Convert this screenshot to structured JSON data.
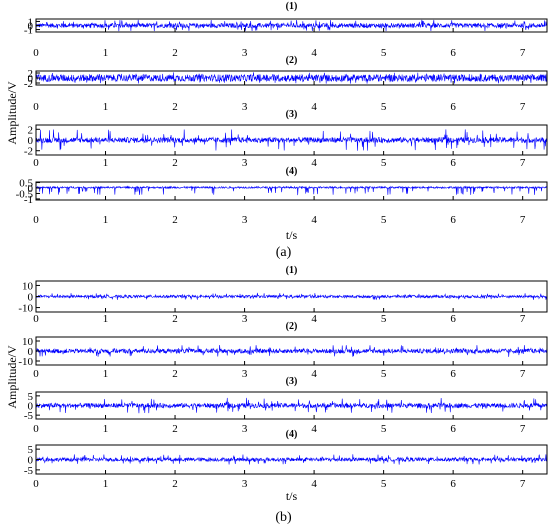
{
  "chart_data": [
    {
      "type": "line",
      "panel_label": "(a)",
      "ylabel": "Amplitude/V",
      "xlabel": "t/s",
      "xlim": [
        0,
        7.35
      ],
      "xticks": [
        "0",
        "1",
        "2",
        "3",
        "4",
        "5",
        "6",
        "7"
      ],
      "grid": false,
      "line_color": "#0000ff",
      "subplots": [
        {
          "title": "(1)",
          "ylim": [
            -1.6,
            1.6
          ],
          "yticks": [
            {
              "v": 1,
              "t": "1"
            },
            {
              "v": 0,
              "t": "0"
            },
            {
              "v": -1,
              "t": "-1"
            }
          ],
          "noise_amplitude": 0.55,
          "spike_amplitude": 1.4,
          "bias": 0
        },
        {
          "title": "(2)",
          "ylim": [
            -2.8,
            2.8
          ],
          "yticks": [
            {
              "v": 2,
              "t": "2"
            },
            {
              "v": 0,
              "t": "0"
            },
            {
              "v": -2,
              "t": "-2"
            }
          ],
          "noise_amplitude": 1.4,
          "spike_amplitude": 2.3,
          "bias": 0
        },
        {
          "title": "(3)",
          "ylim": [
            -2.8,
            2.8
          ],
          "yticks": [
            {
              "v": 2,
              "t": "2"
            },
            {
              "v": 0,
              "t": "0"
            },
            {
              "v": -2,
              "t": "-2"
            }
          ],
          "noise_amplitude": 0.5,
          "spike_amplitude": 2.0,
          "bias": 0
        },
        {
          "title": "(4)",
          "ylim": [
            -1.1,
            0.55
          ],
          "yticks": [
            {
              "v": 0.5,
              "t": "0.5"
            },
            {
              "v": 0,
              "t": "0"
            },
            {
              "v": -0.5,
              "t": "-0.5"
            },
            {
              "v": -1,
              "t": "-1"
            }
          ],
          "noise_amplitude": 0.08,
          "spike_amplitude": 0.7,
          "bias": 0.05,
          "negative_spikes": true
        }
      ]
    },
    {
      "type": "line",
      "panel_label": "(b)",
      "ylabel": "Amplitude/V",
      "xlabel": "t/s",
      "xlim": [
        0,
        7.35
      ],
      "xticks": [
        "0",
        "1",
        "2",
        "3",
        "4",
        "5",
        "6",
        "7"
      ],
      "grid": false,
      "line_color": "#0000ff",
      "subplots": [
        {
          "title": "(1)",
          "ylim": [
            -14,
            14
          ],
          "yticks": [
            {
              "v": 10,
              "t": "10"
            },
            {
              "v": 0,
              "t": "0"
            },
            {
              "v": -10,
              "t": "-10"
            }
          ],
          "noise_amplitude": 1.2,
          "spike_amplitude": 3,
          "bias": 0
        },
        {
          "title": "(2)",
          "ylim": [
            -14,
            14
          ],
          "yticks": [
            {
              "v": 10,
              "t": "10"
            },
            {
              "v": 0,
              "t": "0"
            },
            {
              "v": -10,
              "t": "-10"
            }
          ],
          "noise_amplitude": 2.2,
          "spike_amplitude": 6,
          "bias": 0
        },
        {
          "title": "(3)",
          "ylim": [
            -7,
            7
          ],
          "yticks": [
            {
              "v": 5,
              "t": "5"
            },
            {
              "v": 0,
              "t": "0"
            },
            {
              "v": -5,
              "t": "-5"
            }
          ],
          "noise_amplitude": 1.2,
          "spike_amplitude": 4,
          "bias": 0
        },
        {
          "title": "(4)",
          "ylim": [
            -7,
            7
          ],
          "yticks": [
            {
              "v": 5,
              "t": "5"
            },
            {
              "v": 0,
              "t": "0"
            },
            {
              "v": -5,
              "t": "-5"
            }
          ],
          "noise_amplitude": 0.9,
          "spike_amplitude": 2.5,
          "bias": 0
        }
      ]
    }
  ]
}
